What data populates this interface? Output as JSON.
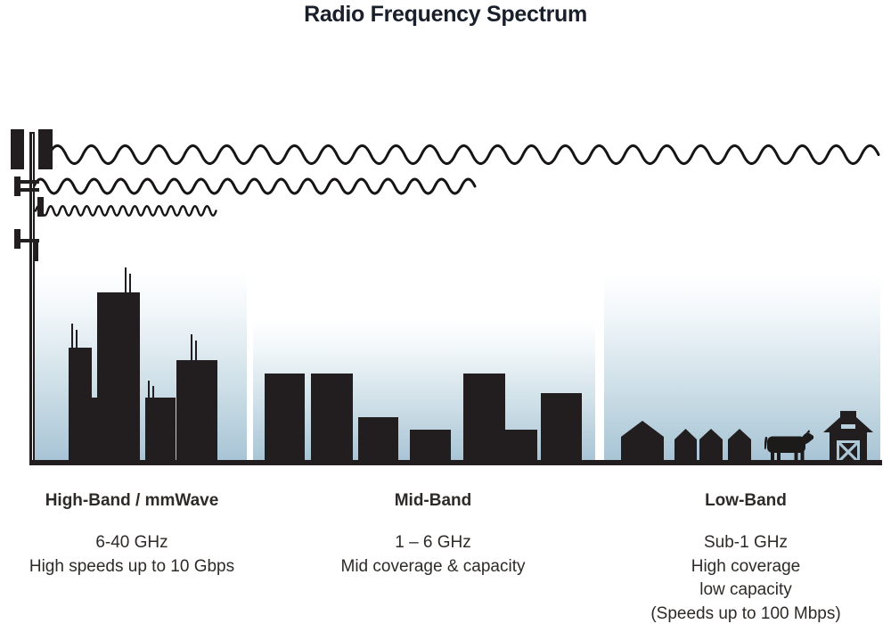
{
  "title": "Radio Frequency Spectrum",
  "bands": [
    {
      "name": "High-Band / mmWave",
      "lines": [
        "6-40 GHz",
        "High speeds up to 10 Gbps"
      ]
    },
    {
      "name": "Mid-Band",
      "lines": [
        "1 – 6 GHz",
        "Mid coverage & capacity"
      ]
    },
    {
      "name": "Low-Band",
      "lines": [
        "Sub-1 GHz",
        "High coverage",
        "low capacity",
        "(Speeds up to 100 Mbps)"
      ]
    }
  ],
  "icons": {
    "tower": "cell-tower-icon",
    "top_wave": "low-band-long-wave-icon",
    "middle_wave": "mid-band-wave-icon",
    "bottom_wave": "high-band-short-wave-icon",
    "high_band_scene": "skyscraper-icons",
    "mid_band_scene": "mid-rise-building-icons",
    "low_band_scene": [
      "house-icon",
      "cow-icon",
      "barn-icon"
    ]
  },
  "colors": {
    "silhouette": "#221e1f",
    "sky_gradient_top": "#ffffff",
    "sky_gradient_bottom": "#a6c3d4",
    "label_text": "#2d2a27",
    "title_text": "#19202b"
  }
}
